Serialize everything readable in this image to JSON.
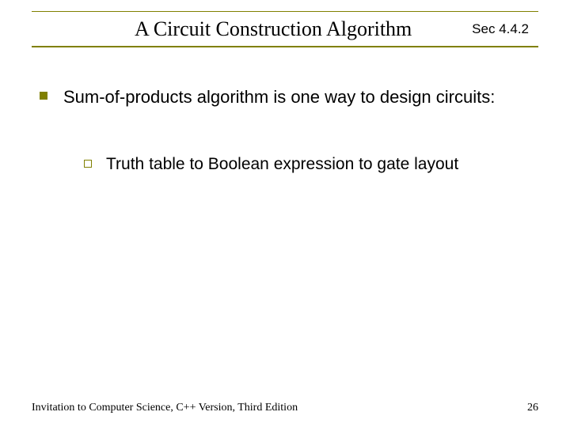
{
  "header": {
    "title": "A Circuit Construction Algorithm",
    "section_ref": "Sec 4.4.2",
    "rule_color": "#808000"
  },
  "bullets": {
    "main": {
      "marker_color": "#808000",
      "text": "Sum-of-products algorithm is one way to design circuits:"
    },
    "sub": {
      "marker_border_color": "#808000",
      "text": "Truth table to Boolean expression to gate layout"
    }
  },
  "footer": {
    "text": "Invitation to Computer Science, C++ Version, Third Edition",
    "page_number": "26"
  },
  "styling": {
    "title_fontsize": 26,
    "body_fontsize": 22,
    "sub_fontsize": 21,
    "footer_fontsize": 14,
    "background_color": "#ffffff",
    "text_color": "#000000"
  }
}
